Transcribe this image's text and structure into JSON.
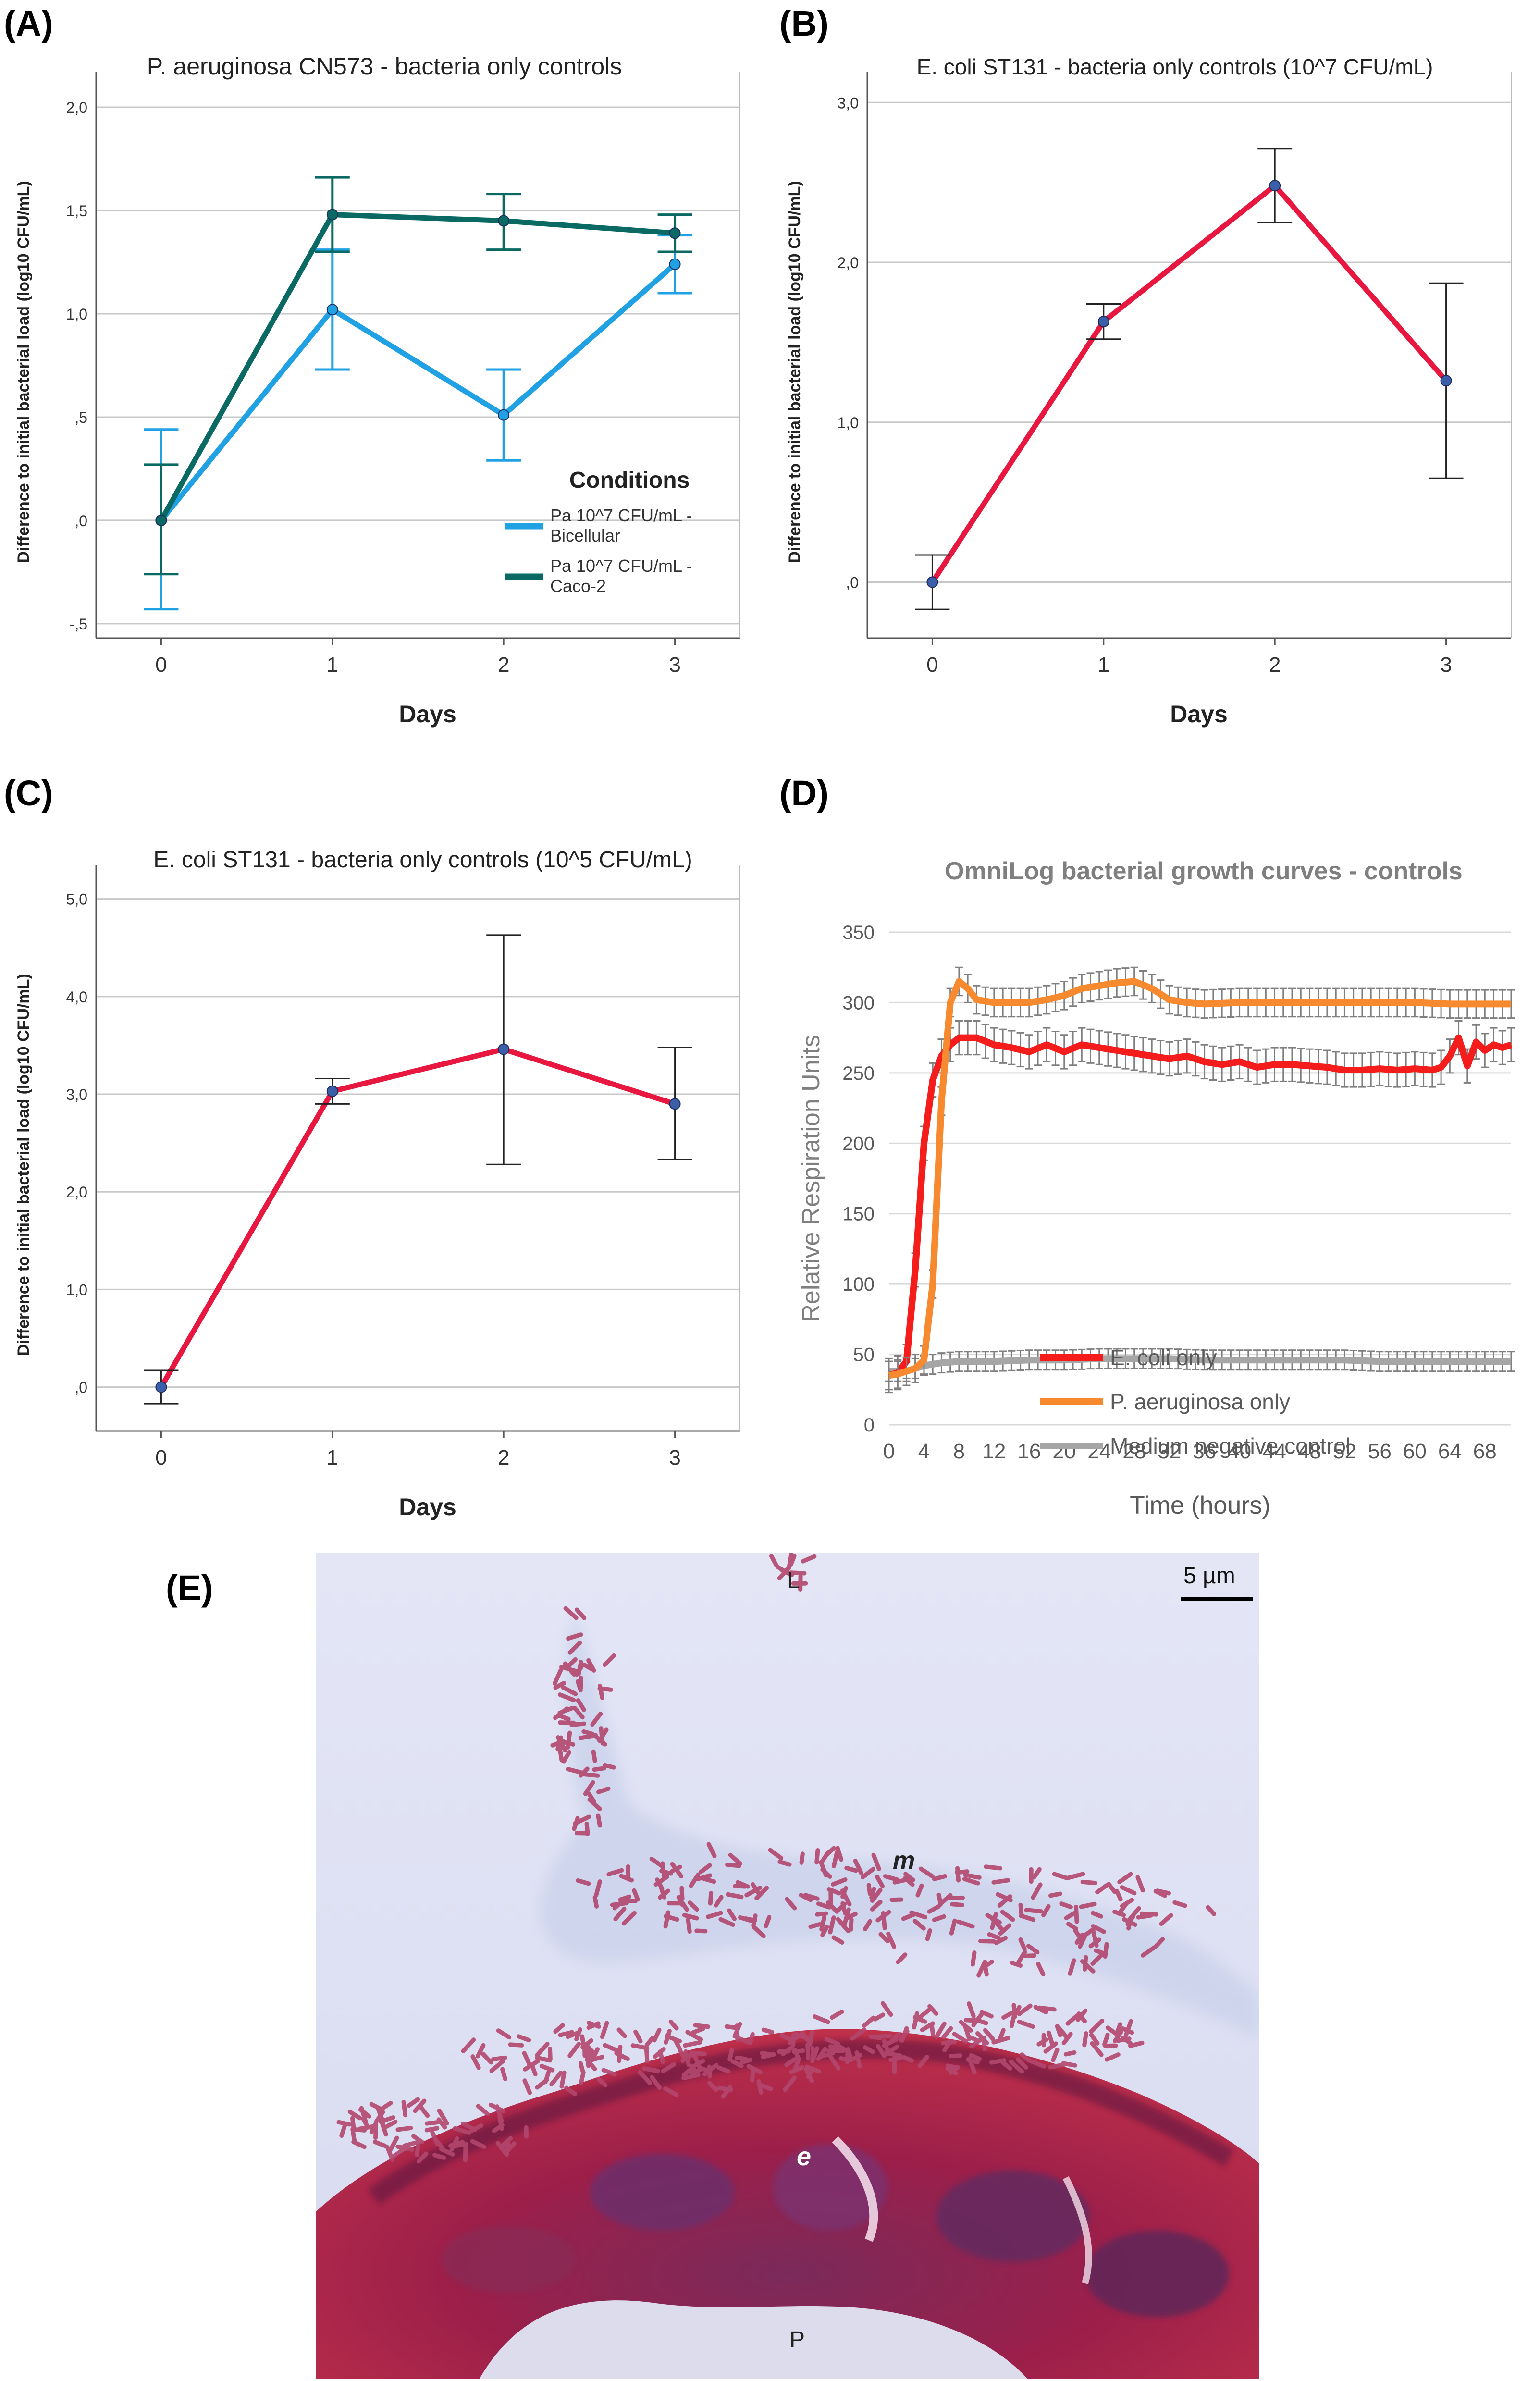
{
  "panels": {
    "A": {
      "label": "(A)"
    },
    "B": {
      "label": "(B)"
    },
    "C": {
      "label": "(C)"
    },
    "D": {
      "label": "(D)"
    },
    "E": {
      "label": "(E)"
    }
  },
  "chart_data": [
    {
      "id": "A",
      "type": "line",
      "title": "P. aeruginosa CN573 - bacteria only controls",
      "xlabel": "Days",
      "ylabel": "Difference to initial bacterial load (log10 CFU/mL)",
      "categories": [
        "0",
        "1",
        "2",
        "3"
      ],
      "x": [
        0,
        1,
        2,
        3
      ],
      "ylim": [
        -0.57,
        2.1
      ],
      "yticks": [
        -0.5,
        0.0,
        0.5,
        1.0,
        1.5,
        2.0
      ],
      "ytick_labels": [
        "-,5",
        ",0",
        ",5",
        "1,0",
        "1,5",
        "2,0"
      ],
      "grid": true,
      "legend_title": "Conditions",
      "legend_position": "right",
      "series": [
        {
          "name": "Pa 10^7  CFU/mL - Bicellular",
          "name_lines": [
            "Pa 10^7  CFU/mL -",
            "Bicellular"
          ],
          "color": "#1fa1e3",
          "values": [
            0.0,
            1.02,
            0.51,
            1.24
          ],
          "err_low": [
            -0.43,
            0.73,
            0.29,
            1.1
          ],
          "err_high": [
            0.44,
            1.31,
            0.73,
            1.38
          ]
        },
        {
          "name": "Pa 10^7  CFU/mL - Caco-2",
          "name_lines": [
            "Pa 10^7  CFU/mL -",
            "Caco-2"
          ],
          "color": "#0a6a63",
          "values": [
            0.0,
            1.48,
            1.45,
            1.39
          ],
          "err_low": [
            -0.26,
            1.3,
            1.31,
            1.3
          ],
          "err_high": [
            0.27,
            1.66,
            1.58,
            1.48
          ]
        }
      ]
    },
    {
      "id": "B",
      "type": "line",
      "title": "E. coli ST131 - bacteria only controls (10^7 CFU/mL)",
      "xlabel": "Days",
      "ylabel": "Difference to initial bacterial load (log10 CFU/mL)",
      "categories": [
        "0",
        "1",
        "2",
        "3"
      ],
      "x": [
        0,
        1,
        2,
        3
      ],
      "ylim": [
        -0.35,
        3.1
      ],
      "yticks": [
        0.0,
        1.0,
        2.0,
        3.0
      ],
      "ytick_labels": [
        ",0",
        "1,0",
        "2,0",
        "3,0"
      ],
      "grid": true,
      "series": [
        {
          "name": "E. coli ST131 10^7",
          "color": "#e8173f",
          "values": [
            0.0,
            1.63,
            2.48,
            1.26
          ],
          "err_low": [
            -0.17,
            1.52,
            2.25,
            0.65
          ],
          "err_high": [
            0.17,
            1.74,
            2.71,
            1.87
          ]
        }
      ]
    },
    {
      "id": "C",
      "type": "line",
      "title": "E. coli ST131 - bacteria only controls (10^5 CFU/mL)",
      "xlabel": "Days",
      "ylabel": "Difference to initial bacterial load (log10 CFU/mL)",
      "categories": [
        "0",
        "1",
        "2",
        "3"
      ],
      "x": [
        0,
        1,
        2,
        3
      ],
      "ylim": [
        -0.45,
        5.2
      ],
      "yticks": [
        0.0,
        1.0,
        2.0,
        3.0,
        4.0,
        5.0
      ],
      "ytick_labels": [
        ",0",
        "1,0",
        "2,0",
        "3,0",
        "4,0",
        "5,0"
      ],
      "grid": true,
      "series": [
        {
          "name": "E. coli ST131 10^5",
          "color": "#e8173f",
          "values": [
            0.0,
            3.03,
            3.46,
            2.9
          ],
          "err_low": [
            -0.17,
            2.9,
            2.28,
            2.33
          ],
          "err_high": [
            0.17,
            3.16,
            4.63,
            3.48
          ]
        }
      ]
    },
    {
      "id": "D",
      "type": "line",
      "title": "OmniLog bacterial growth curves - controls",
      "xlabel": "Time (hours)",
      "ylabel": "Relative Respiration Units",
      "xlim": [
        0,
        71
      ],
      "ylim": [
        0,
        350
      ],
      "xticks": [
        0,
        4,
        8,
        12,
        16,
        20,
        24,
        28,
        32,
        36,
        40,
        44,
        48,
        52,
        56,
        60,
        64,
        68
      ],
      "xtick_labels": [
        "0",
        "4",
        "8",
        "12",
        "16",
        "20",
        "24",
        "28",
        "32",
        "36",
        "40",
        "44",
        "48",
        "52",
        "56",
        "60",
        "64",
        "68"
      ],
      "yticks": [
        0,
        50,
        100,
        150,
        200,
        250,
        300,
        350
      ],
      "ytick_labels": [
        "0",
        "50",
        "100",
        "150",
        "200",
        "250",
        "300",
        "350"
      ],
      "grid": true,
      "legend_position": "center-left",
      "series": [
        {
          "name": "E. coli only",
          "color": "#f51c1c",
          "err": 12,
          "x": [
            0,
            1,
            2,
            3,
            4,
            5,
            6,
            7,
            8,
            10,
            12,
            14,
            16,
            18,
            20,
            22,
            24,
            26,
            28,
            30,
            32,
            34,
            36,
            38,
            40,
            42,
            44,
            46,
            48,
            50,
            52,
            54,
            56,
            58,
            60,
            62,
            63,
            64,
            65,
            66,
            67,
            68,
            69,
            70,
            71
          ],
          "values": [
            35,
            37,
            45,
            110,
            200,
            245,
            262,
            270,
            275,
            275,
            270,
            268,
            265,
            270,
            265,
            270,
            268,
            266,
            264,
            262,
            260,
            262,
            258,
            256,
            258,
            254,
            256,
            256,
            255,
            254,
            252,
            252,
            253,
            252,
            253,
            252,
            254,
            262,
            275,
            255,
            272,
            266,
            270,
            268,
            270
          ]
        },
        {
          "name": "P. aeruginosa only",
          "color": "#f78a2e",
          "err": 10,
          "x": [
            0,
            1,
            2,
            3,
            4,
            5,
            6,
            7,
            8,
            9,
            10,
            12,
            14,
            16,
            18,
            20,
            22,
            24,
            26,
            28,
            30,
            32,
            34,
            36,
            40,
            44,
            48,
            52,
            56,
            60,
            64,
            68,
            71
          ],
          "values": [
            35,
            36,
            38,
            40,
            46,
            100,
            230,
            300,
            315,
            310,
            302,
            300,
            300,
            300,
            302,
            305,
            310,
            312,
            314,
            315,
            310,
            302,
            300,
            299,
            300,
            300,
            300,
            300,
            300,
            300,
            299,
            299,
            299
          ]
        },
        {
          "name": "Medium negative control",
          "color": "#a6a6a6",
          "err": 7,
          "x": [
            0,
            2,
            4,
            6,
            8,
            12,
            16,
            20,
            24,
            28,
            32,
            36,
            40,
            44,
            48,
            52,
            56,
            60,
            64,
            68,
            71
          ],
          "values": [
            38,
            38,
            42,
            44,
            45,
            45,
            46,
            46,
            47,
            47,
            47,
            46,
            46,
            46,
            46,
            46,
            45,
            45,
            45,
            45,
            45
          ]
        }
      ]
    }
  ],
  "micrograph": {
    "scale_bar_label": "5 µm",
    "labels": {
      "lumen": "L",
      "mucus": "m",
      "epithelium": "e",
      "pore": "P"
    }
  }
}
